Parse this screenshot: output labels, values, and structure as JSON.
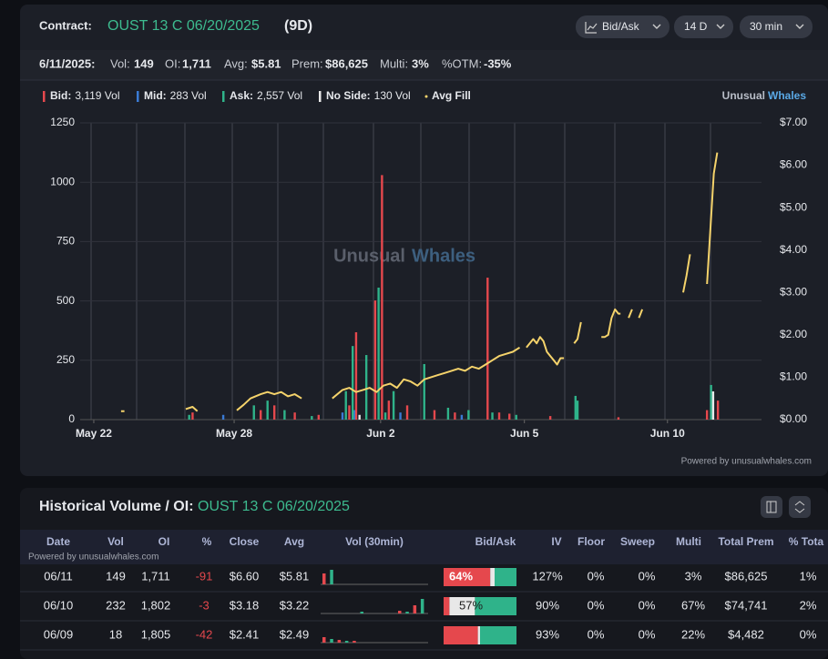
{
  "header": {
    "label": "Contract:",
    "contract": "OUST 13 C 06/20/2025",
    "days": "(9D)",
    "buttons": [
      "Bid/Ask",
      "14 D",
      "30 min"
    ]
  },
  "summary": {
    "date": "6/11/2025:",
    "items": [
      {
        "label": "Vol:",
        "value": "149"
      },
      {
        "label": "OI:",
        "value": "1,711"
      },
      {
        "label": "Avg:",
        "value": "$5.81"
      },
      {
        "label": "Prem:",
        "value": "$86,625"
      },
      {
        "label": "Multi:",
        "value": "3%"
      },
      {
        "label": "%OTM:",
        "value": "-35%"
      }
    ]
  },
  "brand": {
    "first": "Unusual",
    "second": "Whales",
    "powered": "Powered by unusualwhales.com"
  },
  "chart_data": {
    "type": "bar",
    "xlim": [
      0,
      100
    ],
    "xticks": [
      {
        "value": 2,
        "label": "May 22"
      },
      {
        "value": 22.6,
        "label": "May 28"
      },
      {
        "value": 44.1,
        "label": "Jun 2"
      },
      {
        "value": 65.2,
        "label": "Jun 5"
      },
      {
        "value": 86.2,
        "label": "Jun 10"
      }
    ],
    "ylim": [
      0,
      1250
    ],
    "yticks": [
      0,
      250,
      500,
      750,
      1000,
      1250
    ],
    "y2lim": [
      0,
      7
    ],
    "y2ticks": [
      {
        "value": 0,
        "label": "$0.00"
      },
      {
        "value": 1,
        "label": "$1.00"
      },
      {
        "value": 2,
        "label": "$2.00"
      },
      {
        "value": 3,
        "label": "$3.00"
      },
      {
        "value": 4,
        "label": "$4.00"
      },
      {
        "value": 5,
        "label": "$5.00"
      },
      {
        "value": 6,
        "label": "$6.00"
      },
      {
        "value": 7,
        "label": "$7.00"
      }
    ],
    "grid": true,
    "series": [
      {
        "name": "Bid:",
        "total": "3,119 Vol",
        "color": "#e5484d",
        "x": [
          16.5,
          26.5,
          28.5,
          31.5,
          35,
          39.5,
          40.5,
          43.3,
          44.3,
          45.3,
          48,
          52,
          55,
          59.8,
          61.5,
          63,
          69,
          79,
          92,
          93.6
        ],
        "values": [
          30,
          40,
          60,
          30,
          20,
          60,
          368,
          502,
          1030,
          80,
          60,
          40,
          30,
          598,
          30,
          25,
          15,
          10,
          40,
          80
        ]
      },
      {
        "name": "Mid:",
        "total": "283 Vol",
        "color": "#3a7bd5",
        "x": [
          21,
          38.5,
          40.2,
          47,
          56
        ],
        "values": [
          20,
          30,
          40,
          30,
          20
        ]
      },
      {
        "name": "Ask:",
        "total": "2,557 Vol",
        "color": "#2fb38a",
        "x": [
          16,
          25.5,
          27.5,
          30,
          34,
          39,
          40,
          42,
          43.8,
          44.8,
          46,
          50.5,
          54,
          57,
          60.5,
          64,
          72.7,
          73,
          92.6
        ],
        "values": [
          20,
          60,
          80,
          40,
          15,
          120,
          310,
          272,
          556,
          30,
          120,
          234,
          50,
          40,
          30,
          20,
          100,
          80,
          146
        ]
      },
      {
        "name": "No Side:",
        "total": "130 Vol",
        "color": "#e8e8e8",
        "x": [
          41,
          92.9
        ],
        "values": [
          20,
          119
        ]
      },
      {
        "name": "Avg Fill",
        "color": "#f5d36b",
        "type": "line",
        "axis": "y2",
        "x": [
          3,
          null,
          6,
          6.5,
          null,
          12,
          null,
          15.5,
          16.5,
          17.2,
          null,
          19.5,
          null,
          23,
          24,
          25,
          26.5,
          27.5,
          28.5,
          29.5,
          30.5,
          31.5,
          32.5,
          null,
          35,
          null,
          37,
          38.5,
          39.5,
          40.5,
          41.5,
          42.5,
          43.5,
          44.5,
          45.5,
          46.5,
          47.5,
          48.5,
          49.5,
          50.5,
          51.5,
          52.5,
          53.5,
          54.5,
          55.5,
          56.5,
          57.5,
          58.5,
          59.5,
          60.5,
          61.5,
          62.5,
          63.5,
          64.5,
          null,
          65.5,
          66.5,
          67,
          67.5,
          68,
          68.5,
          69,
          69.5,
          70,
          70.5,
          71,
          null,
          71.5,
          null,
          72.5,
          73,
          73.5,
          null,
          74.5,
          null,
          76.5,
          77,
          77.5,
          78,
          78.5,
          79,
          79.3,
          null,
          80.5,
          81,
          null,
          82,
          82.5,
          null,
          84.5,
          null,
          85.5,
          null,
          88.5,
          89,
          89.5,
          null,
          91,
          null,
          92,
          92.5,
          93,
          93.5
        ],
        "values": [
          0.15,
          null,
          0.2,
          0.2,
          null,
          0.15,
          null,
          0.25,
          0.3,
          0.2,
          null,
          0.22,
          null,
          0.22,
          0.35,
          0.5,
          0.6,
          0.65,
          0.6,
          0.65,
          0.55,
          0.6,
          0.5,
          null,
          0.45,
          null,
          0.5,
          0.7,
          0.75,
          0.65,
          0.7,
          0.75,
          0.65,
          0.8,
          0.85,
          0.75,
          0.95,
          0.9,
          0.8,
          0.95,
          1.0,
          1.05,
          1.1,
          1.15,
          1.2,
          1.15,
          1.25,
          1.2,
          1.3,
          1.4,
          1.5,
          1.55,
          1.6,
          1.7,
          null,
          1.7,
          1.9,
          1.8,
          1.95,
          1.85,
          1.6,
          1.5,
          1.4,
          1.3,
          1.45,
          1.45,
          null,
          1.35,
          null,
          1.8,
          1.9,
          2.3,
          null,
          2.0,
          null,
          1.95,
          1.95,
          2.0,
          2.4,
          2.6,
          2.5,
          2.5,
          null,
          2.4,
          2.6,
          null,
          2.4,
          2.6,
          null,
          2.45,
          null,
          2.3,
          null,
          3.0,
          3.4,
          3.9,
          null,
          3.3,
          null,
          3.2,
          4.5,
          5.8,
          6.3
        ]
      }
    ]
  },
  "table": {
    "title": "Historical Volume / OI:",
    "contract": "OUST 13 C 06/20/2025",
    "powered": "Powered by unusualwhales.com",
    "columns": [
      "Date",
      "Vol",
      "OI",
      "%",
      "Close",
      "Avg",
      "Vol (30min)",
      "Bid/Ask",
      "IV",
      "Floor",
      "Sweep",
      "Multi",
      "Total Prem",
      "% Tota"
    ],
    "rows": [
      {
        "cells": [
          "06/11",
          "149",
          "1,711",
          "-91",
          "$6.60",
          "$5.81",
          "127%",
          "0%",
          "0%",
          "3%",
          "$86,625",
          "1%"
        ],
        "vol_30min": [
          12,
          16,
          0,
          0,
          0,
          0,
          0,
          0,
          0,
          0,
          0,
          0,
          0,
          0
        ],
        "bid_ask": [
          64,
          6,
          30
        ],
        "bid_ask_label": "64%"
      },
      {
        "cells": [
          "06/10",
          "232",
          "1,802",
          "-3",
          "$3.18",
          "$3.22",
          "90%",
          "0%",
          "0%",
          "67%",
          "$74,741",
          "2%"
        ],
        "vol_30min": [
          0,
          0,
          0,
          0,
          0,
          2,
          0,
          0,
          0,
          0,
          3,
          2,
          9,
          16
        ],
        "bid_ask": [
          8,
          35,
          57
        ],
        "bid_ask_label": "57%"
      },
      {
        "cells": [
          "06/09",
          "18",
          "1,805",
          "-42",
          "$2.41",
          "$2.49",
          "93%",
          "0%",
          "0%",
          "22%",
          "$4,482",
          "0%"
        ],
        "vol_30min": [
          6,
          4,
          3,
          2,
          2,
          0,
          0,
          0,
          0,
          0,
          0,
          0,
          0,
          0
        ],
        "bid_ask": [
          47,
          3,
          50
        ],
        "bid_ask_label": null
      }
    ]
  }
}
